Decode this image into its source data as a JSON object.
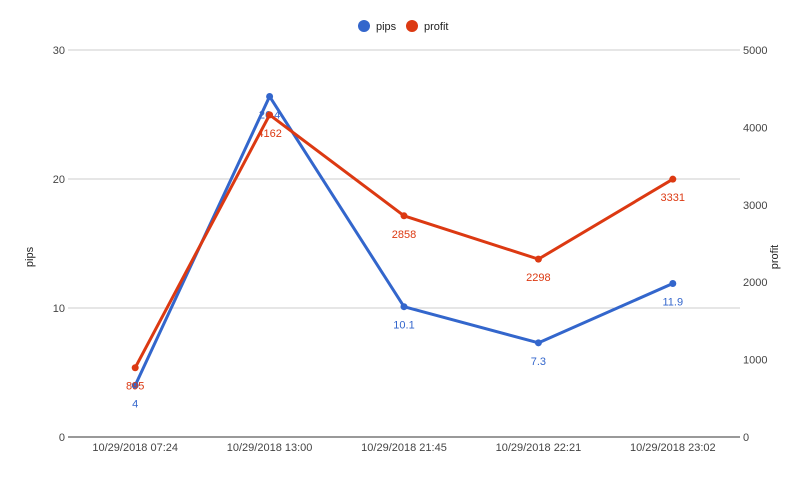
{
  "chart_data": {
    "type": "line",
    "categories": [
      "10/29/2018 07:24",
      "10/29/2018 13:00",
      "10/29/2018 21:45",
      "10/29/2018 22:21",
      "10/29/2018 23:02"
    ],
    "series": [
      {
        "name": "pips",
        "axis": "left",
        "color": "#3366cc",
        "values": [
          4,
          26.4,
          10.1,
          7.3,
          11.9
        ],
        "labels": [
          "4",
          "26.4",
          "10.1",
          "7.3",
          "11.9"
        ]
      },
      {
        "name": "profit",
        "axis": "right",
        "color": "#dc3912",
        "values": [
          895,
          4162,
          2858,
          2298,
          3331
        ],
        "labels": [
          "895",
          "4162",
          "2858",
          "2298",
          "3331"
        ]
      }
    ],
    "left_axis": {
      "label": "pips",
      "range": [
        0,
        30
      ],
      "ticks": [
        "0",
        "10",
        "20",
        "30"
      ]
    },
    "right_axis": {
      "label": "profit",
      "range": [
        0,
        5000
      ],
      "ticks": [
        "0",
        "1000",
        "2000",
        "3000",
        "4000",
        "5000"
      ]
    },
    "legend_position": "top-center",
    "grid": true
  }
}
